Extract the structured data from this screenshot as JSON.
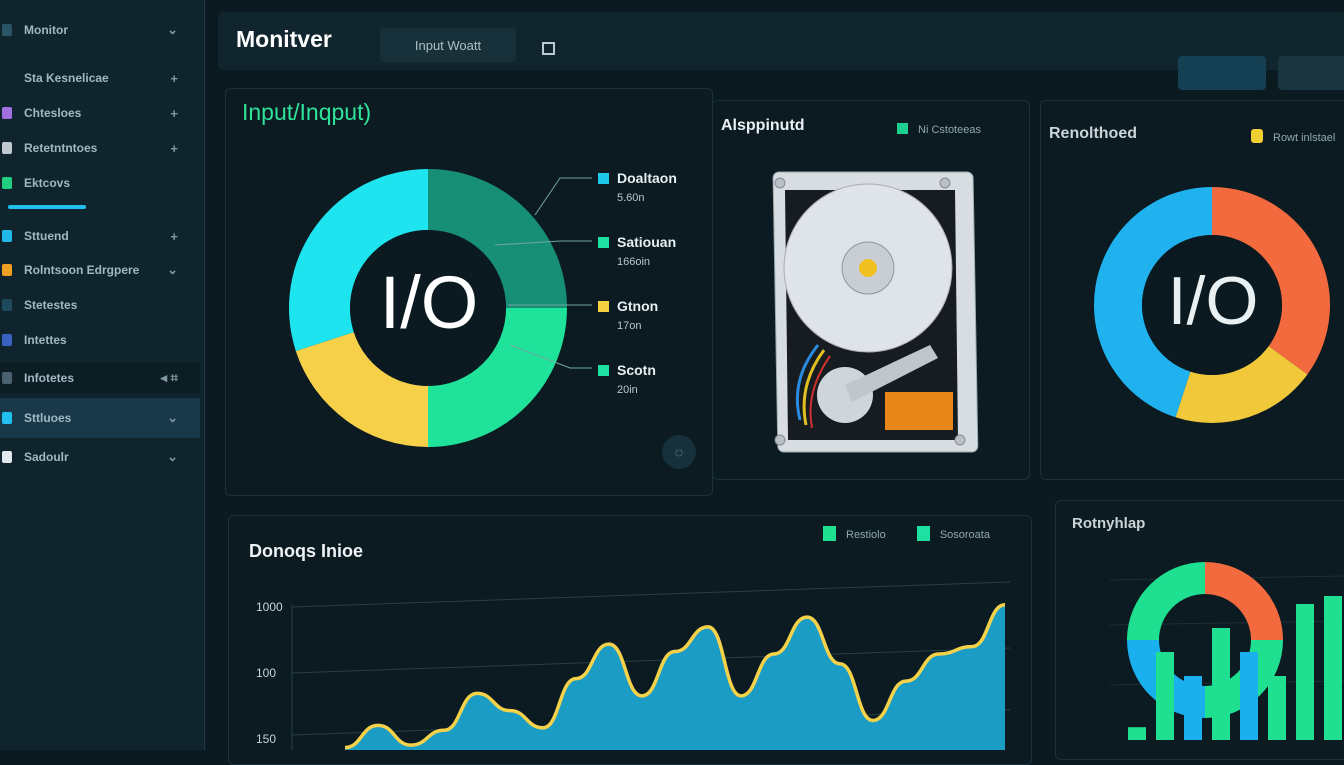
{
  "header": {
    "title": "Monitver",
    "tab_label": "Input Woatt"
  },
  "top_buttons": [
    "",
    ""
  ],
  "sidebar": {
    "items": [
      {
        "label": "Monitor",
        "icon": "folder-icon",
        "color": "#2a5566",
        "action": "chevron-down"
      },
      {
        "label": "Sta Kesnelicae",
        "icon": "",
        "color": "",
        "action": "plus"
      },
      {
        "label": "Chtesloes",
        "icon": "app-icon",
        "color": "#a070e0",
        "action": "plus"
      },
      {
        "label": "Retetntntoes",
        "icon": "app-icon",
        "color": "#c0c8d0",
        "action": "plus"
      },
      {
        "label": "Ektcovs",
        "icon": "app-icon",
        "color": "#20d080",
        "action": ""
      },
      {
        "label": "Sttuend",
        "icon": "app-icon",
        "color": "#20b8e8",
        "action": "plus"
      },
      {
        "label": "Rolntsoon Edrgpere",
        "icon": "app-icon",
        "color": "#f0a020",
        "action": "chevron-down"
      },
      {
        "label": "Stetestes",
        "icon": "app-icon",
        "color": "#1e4a5e",
        "action": ""
      },
      {
        "label": "Intettes",
        "icon": "app-icon",
        "color": "#3a60c0",
        "action": ""
      },
      {
        "label": "Infotetes",
        "icon": "app-icon",
        "color": "#4a6270",
        "action": "arrow"
      },
      {
        "label": "Sttluoes",
        "icon": "app-icon",
        "color": "#20c0f0",
        "action": "chevron-down"
      },
      {
        "label": "Sadoulr",
        "icon": "app-icon",
        "color": "#e0e8ee",
        "action": "chevron-down"
      }
    ]
  },
  "io_panel": {
    "title": "Input/Inqput)",
    "center_label": "I/O",
    "legend": [
      {
        "name": "Doaltaon",
        "value": "5.60n",
        "color": "#1ec8e8"
      },
      {
        "name": "Satiouan",
        "value": "166oin",
        "color": "#1ee0a0"
      },
      {
        "name": "Gtnon",
        "value": "17on",
        "color": "#f5d040"
      },
      {
        "name": "Scotn",
        "value": "20in",
        "color": "#1ee0a0"
      }
    ]
  },
  "hdd_panel": {
    "title": "Alsppinutd",
    "legend": "Ni Cstoteeas",
    "legend_color": "#1ed090"
  },
  "right_panel": {
    "title": "Renolthoed",
    "legend": "Rowt inlstael",
    "legend_color": "#f0d030",
    "center_label": "I/O"
  },
  "bottom_panel": {
    "title": "Donoqs Inioe",
    "legend": [
      {
        "name": "Restiolo",
        "color": "#1ee090"
      },
      {
        "name": "Sosoroata",
        "color": "#1ee0a0"
      }
    ]
  },
  "mini_panel": {
    "title": "Rotnyhlap"
  },
  "chart_data": [
    {
      "type": "pie",
      "title": "Input/Inqput)",
      "center_label": "I/O",
      "categories": [
        "Doaltaon",
        "Satiouan",
        "Gtnon",
        "Scotn"
      ],
      "values": [
        25,
        25,
        20,
        30
      ],
      "colors": [
        "#178f76",
        "#1fe39b",
        "#f7d04a",
        "#1ee4f0"
      ]
    },
    {
      "type": "pie",
      "title": "Renolthoed",
      "center_label": "I/O",
      "values": [
        35,
        20,
        45
      ],
      "colors": [
        "#f26a3d",
        "#f0c83a",
        "#1fb2ee"
      ]
    },
    {
      "type": "area",
      "title": "Donoqs Inioe",
      "yticks": [
        "1000",
        "100",
        "150"
      ],
      "x": [
        0,
        1,
        2,
        3,
        4,
        5,
        6,
        7,
        8,
        9,
        10,
        11,
        12,
        13,
        14,
        15,
        16,
        17,
        18,
        19,
        20
      ],
      "values": [
        2,
        20,
        4,
        16,
        46,
        32,
        18,
        58,
        86,
        44,
        80,
        100,
        44,
        78,
        108,
        70,
        24,
        56,
        78,
        84,
        118
      ],
      "ylim": [
        0,
        130
      ],
      "line_color": "#f5d24a",
      "fill_color": "#1a9cc4"
    },
    {
      "type": "bar",
      "title": "Rotnyhlap",
      "values": [
        8,
        55,
        40,
        70,
        55,
        40,
        85,
        90
      ],
      "colors": [
        "#1ee090",
        "#1ee090",
        "#1ab0ee",
        "#1ee090",
        "#1ab0ee",
        "#1ee090",
        "#1ee090",
        "#1ee090"
      ]
    }
  ]
}
